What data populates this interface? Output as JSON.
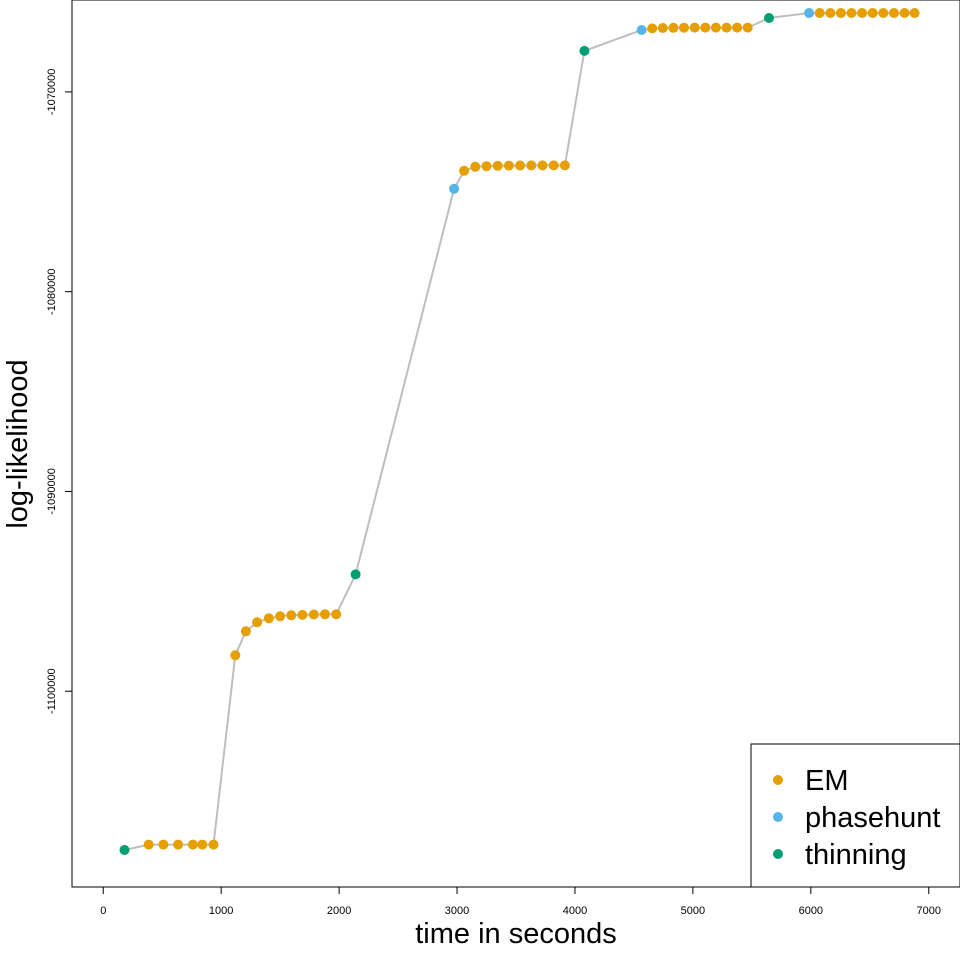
{
  "chart_data": {
    "type": "scatter",
    "title": "",
    "xlabel": "time in seconds",
    "ylabel": "log-likelihood",
    "xlim": [
      -265,
      7265
    ],
    "ylim": [
      -1109800,
      -1065400
    ],
    "xticks": [
      0,
      1000,
      2000,
      3000,
      4000,
      5000,
      6000,
      7000
    ],
    "xtick_labels": [
      "0",
      "1000",
      "2000",
      "3000",
      "4000",
      "5000",
      "6000",
      "7000"
    ],
    "yticks": [
      -1100000,
      -1090000,
      -1080000,
      -1070000
    ],
    "ytick_labels": [
      "-1100000",
      "-1090000",
      "-1080000",
      "-1070000"
    ],
    "grid": false,
    "legend_position": "bottom-right",
    "line_color": "#BEBEBE",
    "series": [
      {
        "name": "EM",
        "color": "#E69F00"
      },
      {
        "name": "phasehunt",
        "color": "#56B4E9"
      },
      {
        "name": "thinning",
        "color": "#009E73"
      }
    ],
    "points": [
      {
        "x": 180,
        "y": -1107950,
        "series": "thinning"
      },
      {
        "x": 385,
        "y": -1107680,
        "series": "EM"
      },
      {
        "x": 510,
        "y": -1107680,
        "series": "EM"
      },
      {
        "x": 635,
        "y": -1107680,
        "series": "EM"
      },
      {
        "x": 760,
        "y": -1107680,
        "series": "EM"
      },
      {
        "x": 840,
        "y": -1107680,
        "series": "EM"
      },
      {
        "x": 935,
        "y": -1107680,
        "series": "EM"
      },
      {
        "x": 1120,
        "y": -1098200,
        "series": "EM"
      },
      {
        "x": 1210,
        "y": -1097000,
        "series": "EM"
      },
      {
        "x": 1305,
        "y": -1096550,
        "series": "EM"
      },
      {
        "x": 1405,
        "y": -1096350,
        "series": "EM"
      },
      {
        "x": 1500,
        "y": -1096250,
        "series": "EM"
      },
      {
        "x": 1595,
        "y": -1096200,
        "series": "EM"
      },
      {
        "x": 1690,
        "y": -1096180,
        "series": "EM"
      },
      {
        "x": 1785,
        "y": -1096160,
        "series": "EM"
      },
      {
        "x": 1880,
        "y": -1096150,
        "series": "EM"
      },
      {
        "x": 1975,
        "y": -1096150,
        "series": "EM"
      },
      {
        "x": 2140,
        "y": -1094150,
        "series": "thinning"
      },
      {
        "x": 2975,
        "y": -1074850,
        "series": "phasehunt"
      },
      {
        "x": 3060,
        "y": -1073950,
        "series": "EM"
      },
      {
        "x": 3155,
        "y": -1073750,
        "series": "EM"
      },
      {
        "x": 3250,
        "y": -1073720,
        "series": "EM"
      },
      {
        "x": 3345,
        "y": -1073700,
        "series": "EM"
      },
      {
        "x": 3440,
        "y": -1073690,
        "series": "EM"
      },
      {
        "x": 3535,
        "y": -1073685,
        "series": "EM"
      },
      {
        "x": 3630,
        "y": -1073680,
        "series": "EM"
      },
      {
        "x": 3725,
        "y": -1073680,
        "series": "EM"
      },
      {
        "x": 3820,
        "y": -1073680,
        "series": "EM"
      },
      {
        "x": 3915,
        "y": -1073680,
        "series": "EM"
      },
      {
        "x": 4080,
        "y": -1067950,
        "series": "thinning"
      },
      {
        "x": 4565,
        "y": -1066900,
        "series": "phasehunt"
      },
      {
        "x": 4655,
        "y": -1066820,
        "series": "EM"
      },
      {
        "x": 4745,
        "y": -1066800,
        "series": "EM"
      },
      {
        "x": 4835,
        "y": -1066790,
        "series": "EM"
      },
      {
        "x": 4925,
        "y": -1066785,
        "series": "EM"
      },
      {
        "x": 5015,
        "y": -1066780,
        "series": "EM"
      },
      {
        "x": 5105,
        "y": -1066780,
        "series": "EM"
      },
      {
        "x": 5195,
        "y": -1066780,
        "series": "EM"
      },
      {
        "x": 5285,
        "y": -1066780,
        "series": "EM"
      },
      {
        "x": 5375,
        "y": -1066780,
        "series": "EM"
      },
      {
        "x": 5465,
        "y": -1066780,
        "series": "EM"
      },
      {
        "x": 5645,
        "y": -1066300,
        "series": "thinning"
      },
      {
        "x": 5985,
        "y": -1066050,
        "series": "phasehunt"
      },
      {
        "x": 6075,
        "y": -1066050,
        "series": "EM"
      },
      {
        "x": 6165,
        "y": -1066050,
        "series": "EM"
      },
      {
        "x": 6255,
        "y": -1066050,
        "series": "EM"
      },
      {
        "x": 6345,
        "y": -1066050,
        "series": "EM"
      },
      {
        "x": 6435,
        "y": -1066050,
        "series": "EM"
      },
      {
        "x": 6525,
        "y": -1066050,
        "series": "EM"
      },
      {
        "x": 6615,
        "y": -1066050,
        "series": "EM"
      },
      {
        "x": 6705,
        "y": -1066050,
        "series": "EM"
      },
      {
        "x": 6795,
        "y": -1066050,
        "series": "EM"
      },
      {
        "x": 6880,
        "y": -1066050,
        "series": "EM"
      }
    ]
  }
}
